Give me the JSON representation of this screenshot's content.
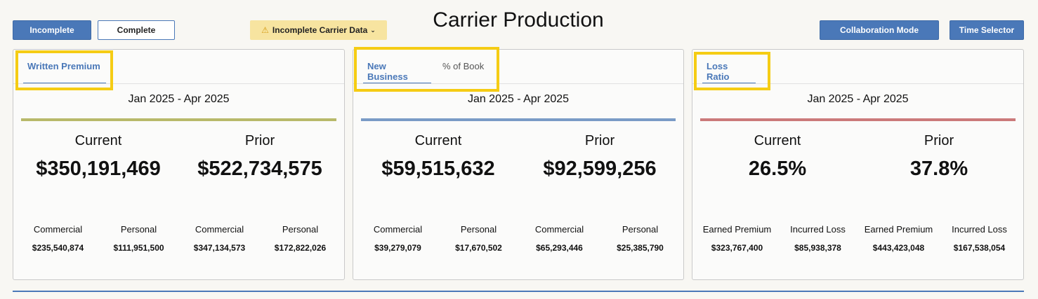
{
  "header": {
    "title": "Carrier Production",
    "incomplete_label": "Incomplete",
    "complete_label": "Complete",
    "warning_label": "Incomplete Carrier Data",
    "collab_label": "Collaboration Mode",
    "time_label": "Time Selector"
  },
  "colors": {
    "accent": "#4a78b8",
    "highlight": "#f5cc14",
    "written_rule": "#b8b96a",
    "newbiz_rule": "#7a9bc6",
    "loss_rule": "#cb7a7a"
  },
  "cards": [
    {
      "tabs": [
        "Written Premium"
      ],
      "period": "Jan 2025 - Apr 2025",
      "current_label": "Current",
      "prior_label": "Prior",
      "current_value": "$350,191,469",
      "prior_value": "$522,734,575",
      "sub": [
        {
          "label": "Commercial",
          "value": "$235,540,874"
        },
        {
          "label": "Personal",
          "value": "$111,951,500"
        },
        {
          "label": "Commercial",
          "value": "$347,134,573"
        },
        {
          "label": "Personal",
          "value": "$172,822,026"
        }
      ]
    },
    {
      "tabs": [
        "New Business",
        "% of Book"
      ],
      "period": "Jan 2025 - Apr 2025",
      "current_label": "Current",
      "prior_label": "Prior",
      "current_value": "$59,515,632",
      "prior_value": "$92,599,256",
      "sub": [
        {
          "label": "Commercial",
          "value": "$39,279,079"
        },
        {
          "label": "Personal",
          "value": "$17,670,502"
        },
        {
          "label": "Commercial",
          "value": "$65,293,446"
        },
        {
          "label": "Personal",
          "value": "$25,385,790"
        }
      ]
    },
    {
      "tabs": [
        "Loss Ratio"
      ],
      "period": "Jan 2025 - Apr 2025",
      "current_label": "Current",
      "prior_label": "Prior",
      "current_value": "26.5%",
      "prior_value": "37.8%",
      "sub": [
        {
          "label": "Earned Premium",
          "value": "$323,767,400"
        },
        {
          "label": "Incurred Loss",
          "value": "$85,938,378"
        },
        {
          "label": "Earned Premium",
          "value": "$443,423,048"
        },
        {
          "label": "Incurred Loss",
          "value": "$167,538,054"
        }
      ]
    }
  ]
}
